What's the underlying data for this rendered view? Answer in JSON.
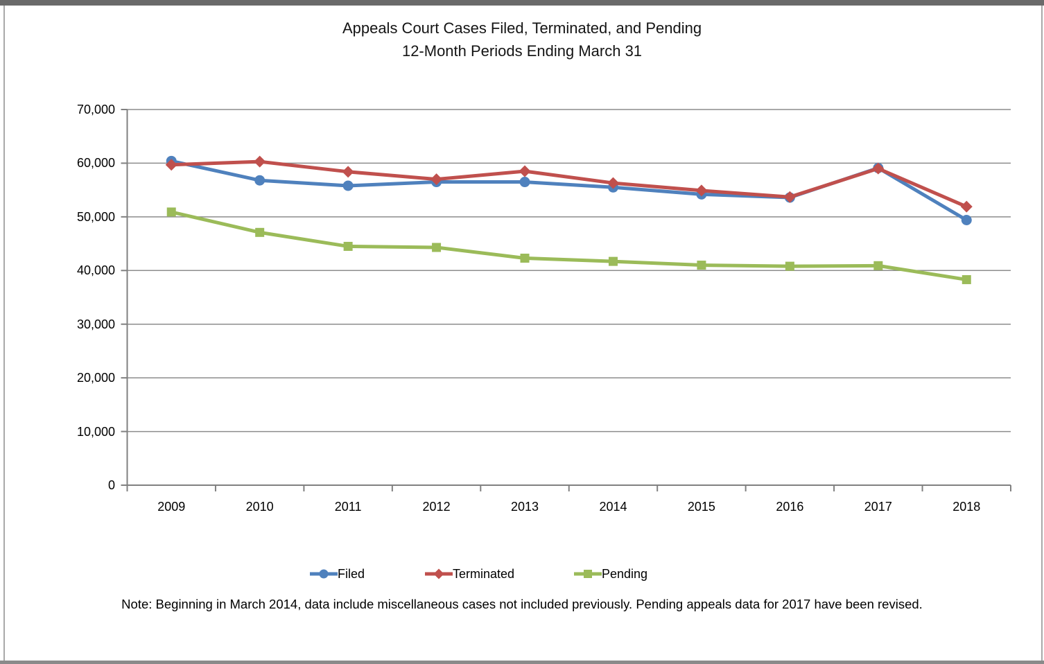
{
  "title": {
    "line1": "Appeals Court Cases Filed, Terminated, and Pending",
    "line2": "12-Month Periods Ending March 31"
  },
  "note": "Note: Beginning in March 2014, data include miscellaneous cases not included previously. Pending appeals data for 2017 have been revised.",
  "colors": {
    "filed": "#4F81BD",
    "terminated": "#C0504D",
    "pending": "#9BBB59",
    "gridline": "#8c8c8c",
    "axis": "#808080",
    "text": "#000000",
    "frame_top": "#6a6a6a",
    "frame_side": "#a8a8a8"
  },
  "chart_data": {
    "type": "line",
    "title": "Appeals Court Cases Filed, Terminated, and Pending — 12-Month Periods Ending March 31",
    "xlabel": "",
    "ylabel": "",
    "grid": true,
    "legend_position": "bottom",
    "ylim": [
      0,
      70000
    ],
    "yticks": [
      0,
      10000,
      20000,
      30000,
      40000,
      50000,
      60000,
      70000
    ],
    "ytick_labels": [
      "0",
      "10,000",
      "20,000",
      "30,000",
      "40,000",
      "50,000",
      "60,000",
      "70,000"
    ],
    "categories": [
      "2009",
      "2010",
      "2011",
      "2012",
      "2013",
      "2014",
      "2015",
      "2016",
      "2017",
      "2018"
    ],
    "series": [
      {
        "name": "Filed",
        "marker": "circle",
        "color": "#4F81BD",
        "values": [
          60400,
          56800,
          55800,
          56500,
          56500,
          55500,
          54200,
          53600,
          59100,
          49400
        ]
      },
      {
        "name": "Terminated",
        "marker": "diamond",
        "color": "#C0504D",
        "values": [
          59700,
          60300,
          58400,
          57000,
          58500,
          56300,
          54900,
          53700,
          59000,
          51900
        ]
      },
      {
        "name": "Pending",
        "marker": "square",
        "color": "#9BBB59",
        "values": [
          50900,
          47100,
          44500,
          44300,
          42300,
          41700,
          41000,
          40800,
          40900,
          38300
        ]
      }
    ]
  }
}
